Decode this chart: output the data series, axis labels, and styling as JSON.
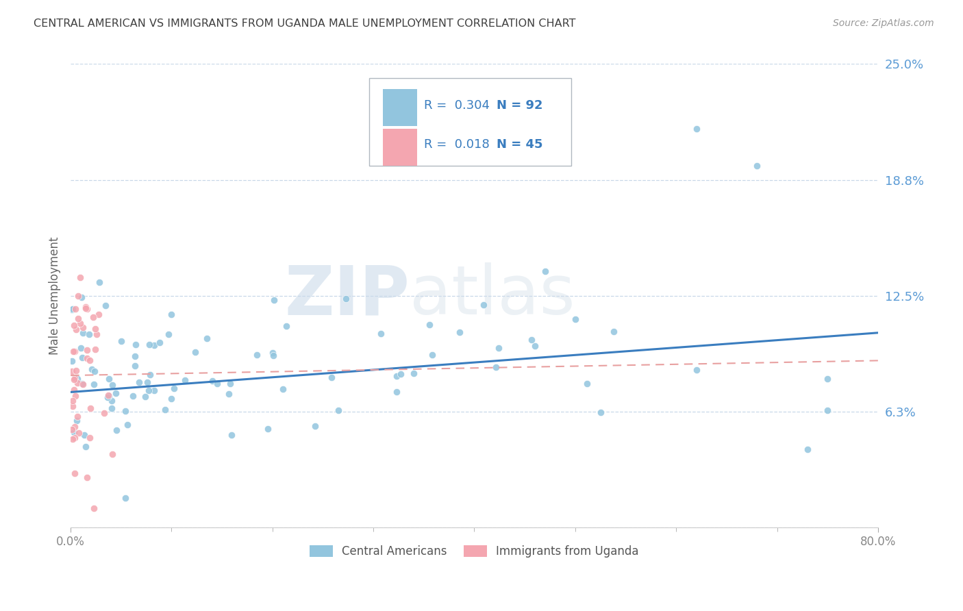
{
  "title": "CENTRAL AMERICAN VS IMMIGRANTS FROM UGANDA MALE UNEMPLOYMENT CORRELATION CHART",
  "source": "Source: ZipAtlas.com",
  "ylabel": "Male Unemployment",
  "xlim": [
    0.0,
    0.8
  ],
  "ylim": [
    0.0,
    0.25
  ],
  "yticks": [
    0.0,
    0.0625,
    0.125,
    0.1875,
    0.25
  ],
  "ytick_labels": [
    "",
    "6.3%",
    "12.5%",
    "18.8%",
    "25.0%"
  ],
  "xtick_positions": [
    0.0,
    0.8
  ],
  "xtick_labels": [
    "0.0%",
    "80.0%"
  ],
  "xtick_minor_positions": [
    0.1,
    0.2,
    0.3,
    0.4,
    0.5,
    0.6,
    0.7
  ],
  "series1": {
    "name": "Central Americans",
    "color": "#92c5de",
    "R": 0.304,
    "N": 92,
    "trend_color": "#3a7dbf"
  },
  "series2": {
    "name": "Immigrants from Uganda",
    "color": "#f4a6b0",
    "R": 0.018,
    "N": 45,
    "trend_color": "#e8a0a0"
  },
  "watermark_zip": "ZIP",
  "watermark_atlas": "atlas",
  "background_color": "#ffffff",
  "grid_color": "#c8d8e8",
  "ytick_color": "#5b9bd5",
  "title_color": "#404040",
  "legend_r_color": "#3a7dbf",
  "legend_n_color": "#3a7dbf"
}
